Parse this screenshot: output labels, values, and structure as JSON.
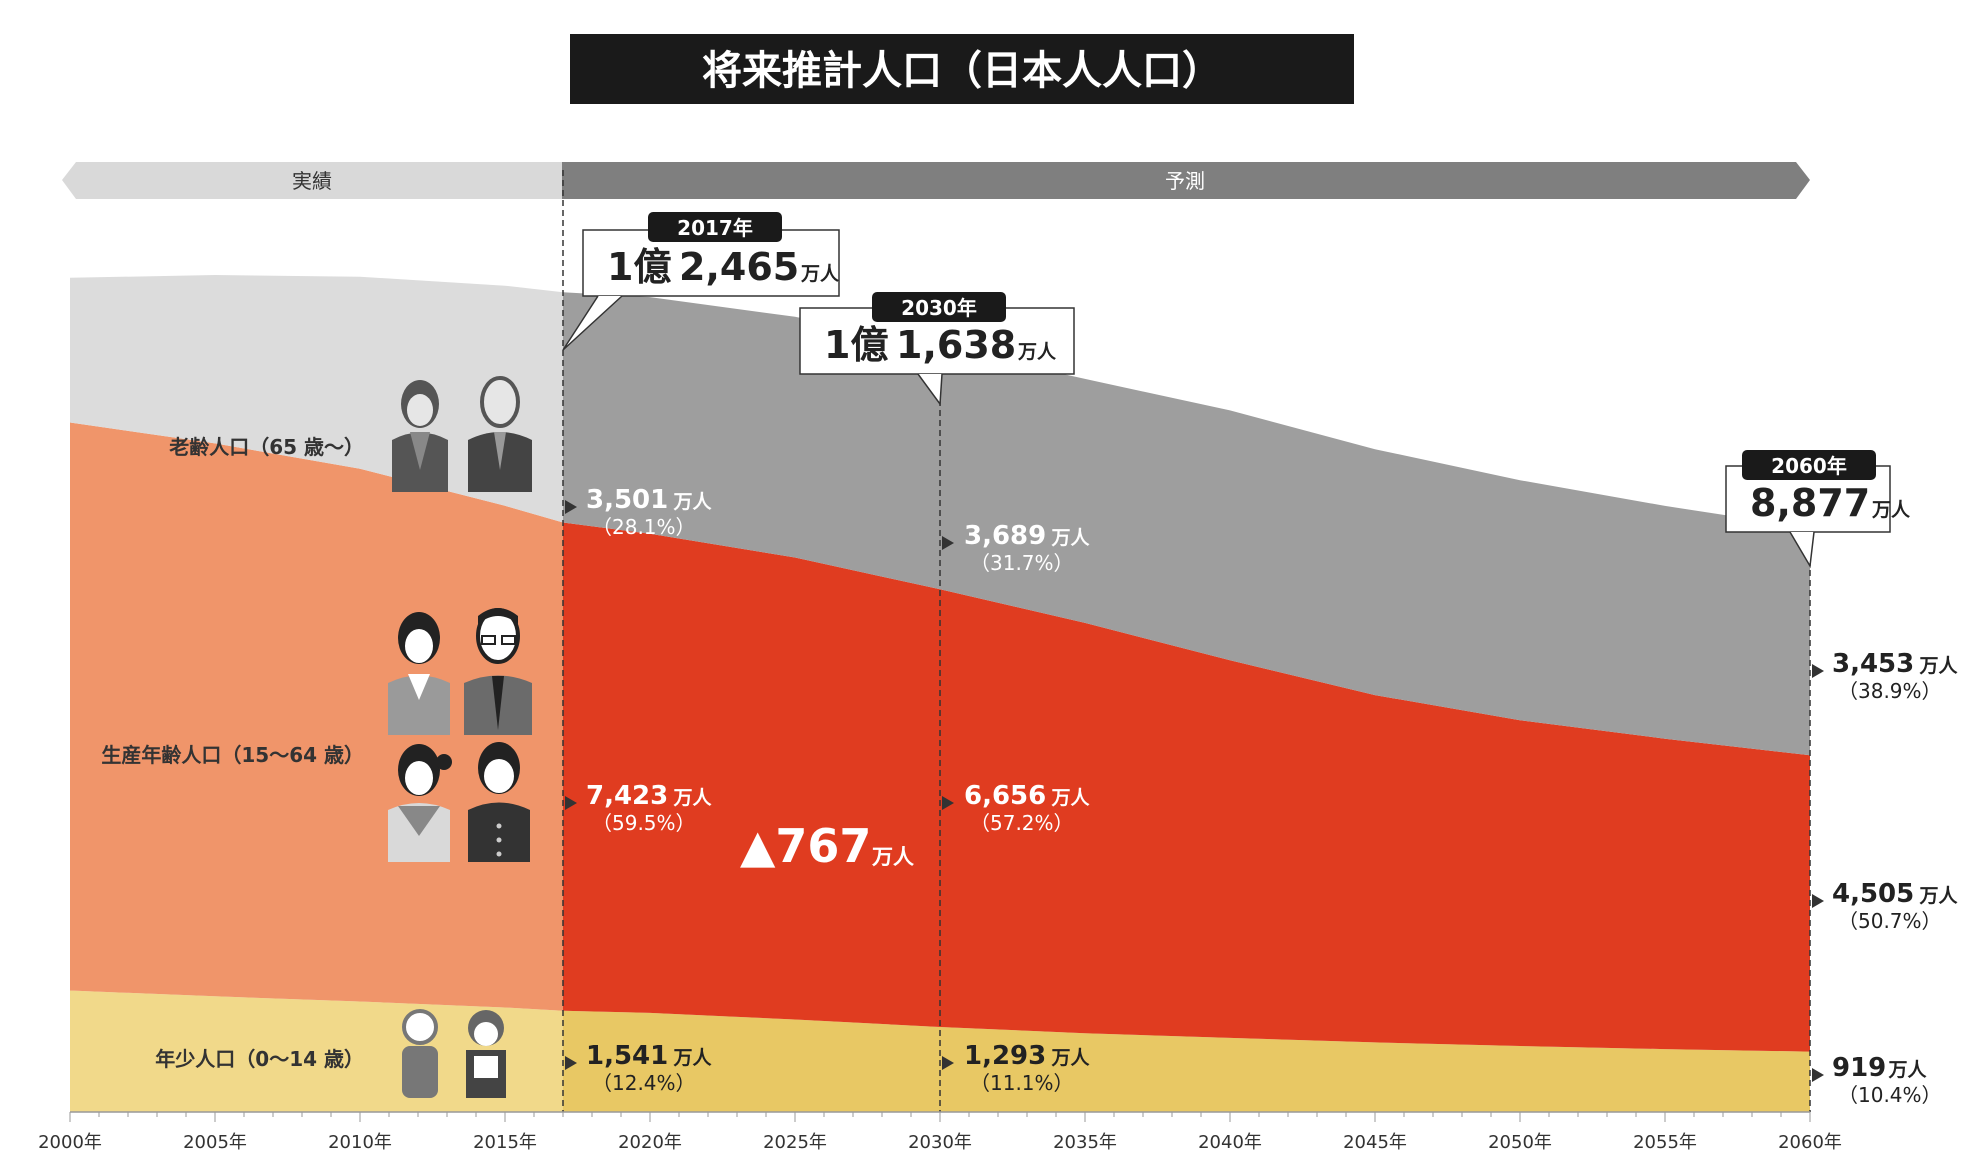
{
  "chart_data": {
    "type": "area",
    "stacked": true,
    "title": "将来推計人口（日本人人口）",
    "periods": {
      "actual_label": "実績",
      "forecast_label": "予測"
    },
    "x_ticks": [
      "2000年",
      "2005年",
      "2010年",
      "2015年",
      "2020年",
      "2025年",
      "2030年",
      "2035年",
      "2040年",
      "2045年",
      "2050年",
      "2055年",
      "2060年"
    ],
    "xlim": [
      2000,
      2060
    ],
    "x": [
      2000,
      2005,
      2010,
      2015,
      2017,
      2020,
      2025,
      2030,
      2035,
      2040,
      2045,
      2050,
      2055,
      2060
    ],
    "series": [
      {
        "name": "年少人口（0〜14 歳）",
        "color_actual": "#f1d98a",
        "color_forecast": "#e8c864",
        "values": [
          1847,
          1759,
          1680,
          1589,
          1541,
          1507,
          1407,
          1293,
          1198,
          1127,
          1059,
          1003,
          957,
          919
        ]
      },
      {
        "name": "生産年齢人口（15〜64 歳）",
        "color_actual": "#f0956a",
        "color_forecast": "#e03c20",
        "values": [
          8638,
          8409,
          8103,
          7629,
          7423,
          7285,
          7025,
          6656,
          6240,
          5742,
          5280,
          4955,
          4720,
          4505
        ]
      },
      {
        "name": "老齢人口（65 歳〜）",
        "color_actual": "#dcdcdc",
        "color_forecast": "#9e9e9e",
        "values": [
          2200,
          2560,
          2920,
          3347,
          3501,
          3600,
          3660,
          3689,
          3710,
          3800,
          3740,
          3650,
          3540,
          3453
        ]
      }
    ],
    "labels": {
      "y2017": {
        "elderly": {
          "value": "3,501",
          "unit": "万人",
          "pct": "（28.1%）"
        },
        "working": {
          "value": "7,423",
          "unit": "万人",
          "pct": "（59.5%）"
        },
        "youth": {
          "value": "1,541",
          "unit": "万人",
          "pct": "（12.4%）"
        }
      },
      "y2030": {
        "elderly": {
          "value": "3,689",
          "unit": "万人",
          "pct": "（31.7%）"
        },
        "working": {
          "value": "6,656",
          "unit": "万人",
          "pct": "（57.2%）"
        },
        "youth": {
          "value": "1,293",
          "unit": "万人",
          "pct": "（11.1%）"
        }
      },
      "y2060": {
        "elderly": {
          "value": "3,453",
          "unit": "万人",
          "pct": "（38.9%）"
        },
        "working": {
          "value": "4,505",
          "unit": "万人",
          "pct": "（50.7%）"
        },
        "youth": {
          "value": "919",
          "unit": "万人",
          "pct": "（10.4%）"
        }
      }
    },
    "callouts": [
      {
        "year": "2017年",
        "x": 2017,
        "prefix": "1億",
        "value": "2,465",
        "unit": "万人"
      },
      {
        "year": "2030年",
        "x": 2030,
        "prefix": "1億",
        "value": "1,638",
        "unit": "万人"
      },
      {
        "year": "2060年",
        "x": 2060,
        "prefix": "",
        "value": "8,877",
        "unit": "万人"
      }
    ],
    "working_decline": {
      "value": "▲767",
      "unit": "万人"
    },
    "group_labels": {
      "elderly": "老齢人口（65 歳〜）",
      "working": "生産年齢人口（15〜64 歳）",
      "youth": "年少人口（0〜14 歳）"
    },
    "colors": {
      "title_bg": "#1a1a1a",
      "actual_banner": "#d9d9d9",
      "forecast_banner": "#7f7f7f"
    }
  }
}
